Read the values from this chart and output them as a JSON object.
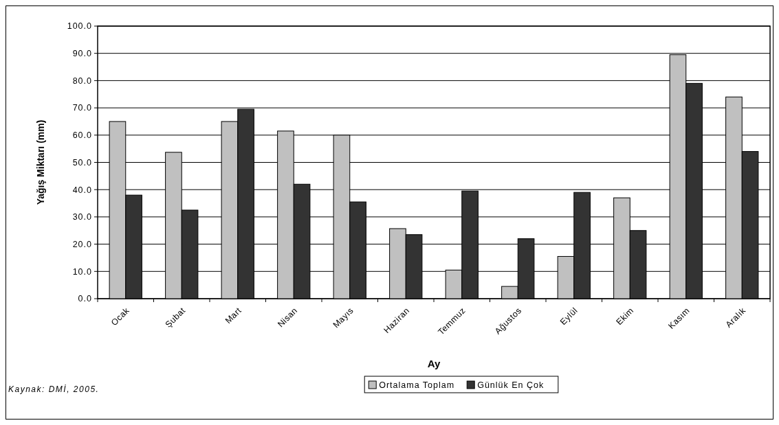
{
  "chart_data": {
    "type": "bar",
    "xlabel": "Ay",
    "ylabel": "Yağış Miktarı (mm)",
    "categories": [
      "Ocak",
      "Şubat",
      "Mart",
      "Nisan",
      "Mayıs",
      "Haziran",
      "Temmuz",
      "Ağustos",
      "Eylül",
      "Ekim",
      "Kasım",
      "Aralık"
    ],
    "series": [
      {
        "name": "Ortalama Toplam",
        "color": "#c0c0c0",
        "values": [
          65,
          53.7,
          65,
          61.5,
          60,
          25.7,
          10.5,
          4.5,
          15.5,
          37,
          89.5,
          74
        ]
      },
      {
        "name": "Günlük En Çok",
        "color": "#333333",
        "values": [
          38,
          32.5,
          69.5,
          42,
          35.5,
          23.5,
          39.5,
          22,
          39,
          25,
          79,
          54
        ]
      }
    ],
    "ylim": [
      0,
      100
    ],
    "yticks": [
      {
        "value": 0,
        "label": "0.0"
      },
      {
        "value": 10,
        "label": "10.0"
      },
      {
        "value": 20,
        "label": "20.0"
      },
      {
        "value": 30,
        "label": "30.0"
      },
      {
        "value": 40,
        "label": "40.0"
      },
      {
        "value": 50,
        "label": "50.0"
      },
      {
        "value": 60,
        "label": "60.0"
      },
      {
        "value": 70,
        "label": "70.0"
      },
      {
        "value": 80,
        "label": "80.0"
      },
      {
        "value": 90,
        "label": "90.0"
      },
      {
        "value": 100,
        "label": "100.0"
      }
    ],
    "grid": "y",
    "legend": "bottom",
    "annotations": [
      "Kaynak: DMİ, 2005."
    ]
  }
}
